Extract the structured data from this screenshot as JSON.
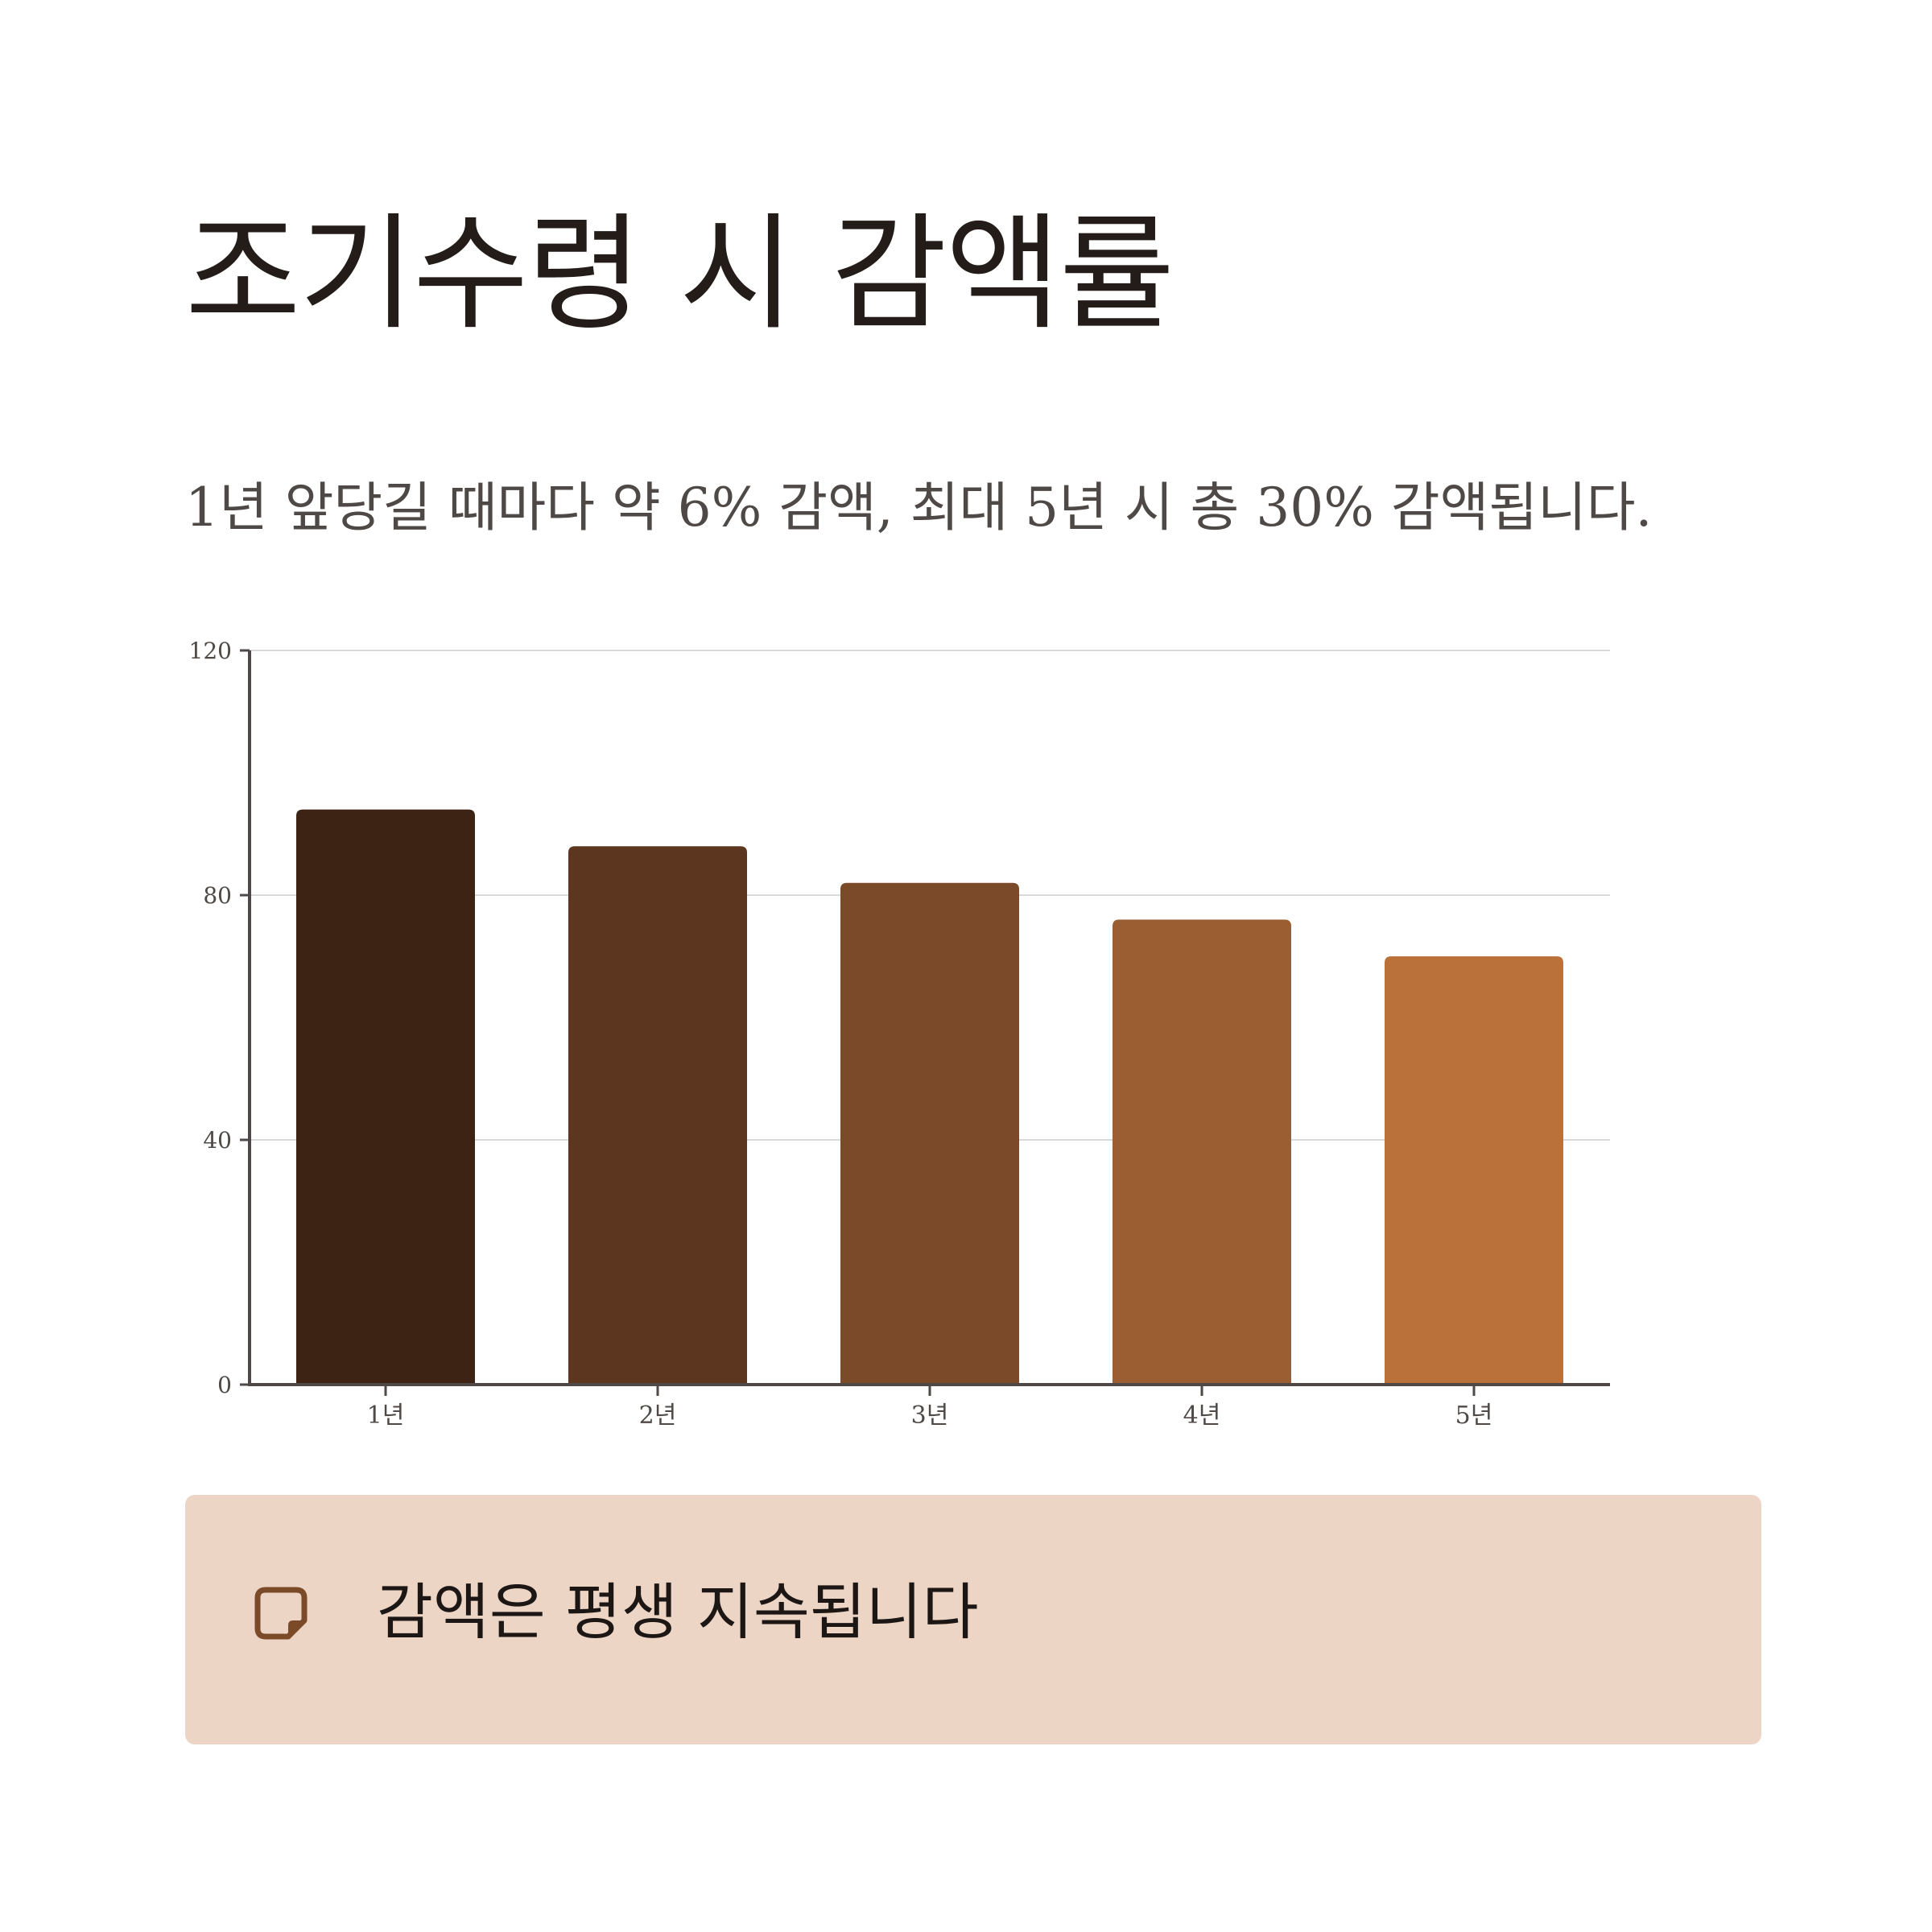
{
  "title": "조기수령 시 감액률",
  "subtitle": "1년 앞당길 때마다 약 6% 감액, 최대 5년 시 총 30% 감액됩니다.",
  "note": {
    "icon": "sticky-note-icon",
    "text": "감액은 평생 지속됩니다"
  },
  "colors": {
    "bars": [
      "#3c2313",
      "#5c361e",
      "#7b4a28",
      "#9b5e32",
      "#bb713a"
    ],
    "axis": "#4e4946",
    "grid": "#d9d9d9",
    "note_bg": "#edd5c5",
    "note_icon": "#7b4a28"
  },
  "chart_data": {
    "type": "bar",
    "categories": [
      "1년",
      "2년",
      "3년",
      "4년",
      "5년"
    ],
    "values": [
      94,
      88,
      82,
      76,
      70
    ],
    "yticks": [
      0,
      40,
      80,
      120
    ],
    "ylim": [
      0,
      120
    ],
    "xlabel": "",
    "ylabel": "",
    "grid": true
  }
}
